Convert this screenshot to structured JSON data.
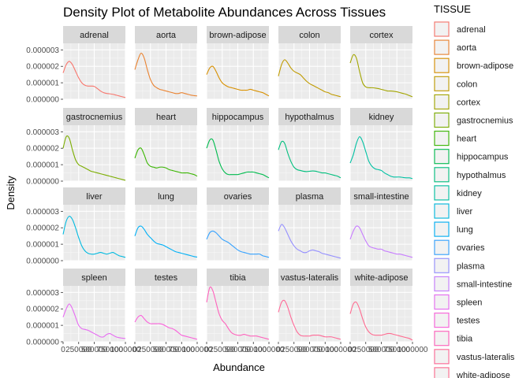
{
  "chart_data": {
    "type": "line",
    "title": "Density Plot of Metabolite Abundances Across Tissues",
    "xlabel": "Abundance",
    "ylabel": "Density",
    "facet_layout": {
      "rows": 4,
      "cols": 5
    },
    "xlim": [
      0,
      1000000
    ],
    "ylim": [
      0,
      3.4e-06
    ],
    "x_ticks": [
      0,
      250000,
      500000,
      750000,
      1000000
    ],
    "x_tick_labels": [
      "0",
      "250000",
      "500000",
      "750000",
      "1000000"
    ],
    "y_ticks": [
      0,
      1e-06,
      2e-06,
      3e-06
    ],
    "y_tick_labels": [
      "0.000000",
      "0.000001",
      "0.000002",
      "0.000003"
    ],
    "grid": true,
    "legend": {
      "title": "TISSUE",
      "position": "right"
    },
    "x": [
      0,
      50000,
      100000,
      150000,
      200000,
      250000,
      300000,
      350000,
      400000,
      450000,
      500000,
      550000,
      600000,
      650000,
      700000,
      750000,
      800000,
      850000,
      900000,
      950000,
      1000000
    ],
    "series": [
      {
        "name": "adrenal",
        "color": "#F8766D",
        "values": [
          1.6e-06,
          2.1e-06,
          2.3e-06,
          2.1e-06,
          1.7e-06,
          1.3e-06,
          1e-06,
          8.5e-07,
          8e-07,
          8e-07,
          7.8e-07,
          6.5e-07,
          5e-07,
          4e-07,
          3.5e-07,
          3.3e-07,
          3e-07,
          2.5e-07,
          2e-07,
          1.5e-07,
          1e-07
        ]
      },
      {
        "name": "aorta",
        "color": "#EA8331",
        "values": [
          1.8e-06,
          2.4e-06,
          2.8e-06,
          2.5e-06,
          1.8e-06,
          1.2e-06,
          8.5e-07,
          7e-07,
          6e-07,
          5.5e-07,
          5e-07,
          4.5e-07,
          4e-07,
          3.5e-07,
          3.5e-07,
          4e-07,
          3.5e-07,
          3e-07,
          2.5e-07,
          2.2e-07,
          2e-07
        ]
      },
      {
        "name": "brown-adipose",
        "color": "#D89000",
        "values": [
          1.5e-06,
          1.9e-06,
          2e-06,
          1.7e-06,
          1.3e-06,
          1e-06,
          8.5e-07,
          7.5e-07,
          7e-07,
          6.5e-07,
          6e-07,
          5.5e-07,
          5.5e-07,
          5.5e-07,
          6e-07,
          5.5e-07,
          5e-07,
          4.5e-07,
          4e-07,
          3e-07,
          2e-07
        ]
      },
      {
        "name": "colon",
        "color": "#C09B00",
        "values": [
          1.4e-06,
          2.1e-06,
          2.4e-06,
          2.2e-06,
          1.9e-06,
          1.7e-06,
          1.6e-06,
          1.5e-06,
          1.3e-06,
          1.1e-06,
          9.5e-07,
          8.5e-07,
          7.5e-07,
          6.5e-07,
          5.5e-07,
          4.5e-07,
          4e-07,
          3e-07,
          2.5e-07,
          2e-07,
          1.5e-07
        ]
      },
      {
        "name": "cortex",
        "color": "#A3A500",
        "values": [
          2.2e-06,
          2.7e-06,
          2.5e-06,
          1.7e-06,
          1e-06,
          7.5e-07,
          7e-07,
          7e-07,
          6.8e-07,
          6.5e-07,
          6e-07,
          5.5e-07,
          5e-07,
          5e-07,
          4.8e-07,
          4.5e-07,
          4e-07,
          3.5e-07,
          3e-07,
          2.2e-07,
          1.5e-07
        ]
      },
      {
        "name": "gastrocnemius",
        "color": "#7CAE00",
        "values": [
          2e-06,
          2.7e-06,
          2.6e-06,
          1.9e-06,
          1.3e-06,
          1e-06,
          9e-07,
          8e-07,
          7e-07,
          6e-07,
          5.5e-07,
          5e-07,
          4.5e-07,
          4e-07,
          3.5e-07,
          3e-07,
          2.5e-07,
          2e-07,
          1.5e-07,
          1e-07,
          5e-08
        ]
      },
      {
        "name": "heart",
        "color": "#39B600",
        "values": [
          1.4e-06,
          1.9e-06,
          2e-06,
          1.6e-06,
          1.1e-06,
          9e-07,
          8.5e-07,
          8e-07,
          8.5e-07,
          8.5e-07,
          8e-07,
          7e-07,
          6.5e-07,
          6e-07,
          5.5e-07,
          5e-07,
          5e-07,
          5e-07,
          4.5e-07,
          4e-07,
          3e-07
        ]
      },
      {
        "name": "hippocampus",
        "color": "#00BB4E",
        "values": [
          2e-06,
          2.5e-06,
          2.5e-06,
          1.9e-06,
          1.2e-06,
          7.5e-07,
          5e-07,
          4e-07,
          4e-07,
          4e-07,
          4e-07,
          4.5e-07,
          5e-07,
          5.5e-07,
          5.5e-07,
          5.5e-07,
          5e-07,
          4.5e-07,
          4e-07,
          3e-07,
          2e-07
        ]
      },
      {
        "name": "hypothalmus",
        "color": "#00BF7D",
        "values": [
          1.9e-06,
          2.4e-06,
          2.3e-06,
          1.7e-06,
          1.2e-06,
          8.5e-07,
          7e-07,
          6.5e-07,
          6e-07,
          5.8e-07,
          6e-07,
          6.2e-07,
          6e-07,
          5.5e-07,
          5e-07,
          5e-07,
          4.5e-07,
          4e-07,
          3.5e-07,
          3e-07,
          2e-07
        ]
      },
      {
        "name": "kidney",
        "color": "#00C1A3",
        "values": [
          1.1e-06,
          1.6e-06,
          2.3e-06,
          2.7e-06,
          2.4e-06,
          1.8e-06,
          1.2e-06,
          9e-07,
          7.5e-07,
          7e-07,
          6.5e-07,
          5e-07,
          4e-07,
          3e-07,
          2.5e-07,
          2.5e-07,
          2.5e-07,
          2.2e-07,
          2e-07,
          2e-07,
          1.5e-07
        ]
      },
      {
        "name": "liver",
        "color": "#00BAE0",
        "values": [
          1.6e-06,
          2.4e-06,
          2.7e-06,
          2.5e-06,
          2e-06,
          1.4e-06,
          9e-07,
          6e-07,
          4.5e-07,
          4e-07,
          4e-07,
          4.5e-07,
          5e-07,
          4.5e-07,
          4e-07,
          4.5e-07,
          5e-07,
          4e-07,
          3e-07,
          2.5e-07,
          2e-07
        ]
      },
      {
        "name": "lung",
        "color": "#00B0F6",
        "values": [
          1.5e-06,
          2e-06,
          2.1e-06,
          1.9e-06,
          1.6e-06,
          1.4e-06,
          1.2e-06,
          1.05e-06,
          1e-06,
          9.5e-07,
          8.5e-07,
          7.5e-07,
          6.5e-07,
          5.5e-07,
          5e-07,
          4.5e-07,
          4e-07,
          3.5e-07,
          3e-07,
          2.5e-07,
          2.2e-07
        ]
      },
      {
        "name": "ovaries",
        "color": "#35A2FF",
        "values": [
          1.3e-06,
          1.7e-06,
          1.8e-06,
          1.7e-06,
          1.5e-06,
          1.3e-06,
          1.2e-06,
          1.1e-06,
          9.5e-07,
          8e-07,
          6.5e-07,
          5.5e-07,
          5e-07,
          4.5e-07,
          4e-07,
          4e-07,
          4e-07,
          4e-07,
          3e-07,
          2.5e-07,
          2e-07
        ]
      },
      {
        "name": "plasma",
        "color": "#9590FF",
        "values": [
          1.8e-06,
          2.2e-06,
          2e-06,
          1.6e-06,
          1.2e-06,
          9e-07,
          7e-07,
          6e-07,
          5e-07,
          5e-07,
          6e-07,
          6.5e-07,
          6e-07,
          5.5e-07,
          4.5e-07,
          4e-07,
          3.5e-07,
          3e-07,
          2.5e-07,
          2e-07,
          1.5e-07
        ]
      },
      {
        "name": "small-intestine",
        "color": "#C77CFF",
        "values": [
          1.3e-06,
          1.8e-06,
          2.1e-06,
          2e-06,
          1.6e-06,
          1.2e-06,
          9e-07,
          8e-07,
          7.5e-07,
          7e-07,
          7e-07,
          6e-07,
          5.5e-07,
          5e-07,
          4.5e-07,
          4e-07,
          4e-07,
          3.5e-07,
          3e-07,
          2.5e-07,
          2e-07
        ]
      },
      {
        "name": "spleen",
        "color": "#E76BF3",
        "values": [
          1.5e-06,
          2e-06,
          2.3e-06,
          2e-06,
          1.5e-06,
          1e-06,
          8e-07,
          7.5e-07,
          7e-07,
          6e-07,
          5e-07,
          4e-07,
          3e-07,
          3e-07,
          4.5e-07,
          5e-07,
          4e-07,
          3e-07,
          2.5e-07,
          2.2e-07,
          2e-07
        ]
      },
      {
        "name": "testes",
        "color": "#FA62DB",
        "values": [
          1.2e-06,
          1.5e-06,
          1.6e-06,
          1.4e-06,
          1.2e-06,
          1.1e-06,
          1.1e-06,
          1.1e-06,
          1.1e-06,
          1.05e-06,
          9.5e-07,
          8.5e-07,
          8e-07,
          7e-07,
          5.5e-07,
          4e-07,
          3.5e-07,
          3e-07,
          2.5e-07,
          2e-07,
          1.5e-07
        ]
      },
      {
        "name": "tibia",
        "color": "#FF62BC",
        "values": [
          2.4e-06,
          3.3e-06,
          3.1e-06,
          2.4e-06,
          1.7e-06,
          1.3e-06,
          1.1e-06,
          8e-07,
          5.5e-07,
          4.5e-07,
          4e-07,
          4e-07,
          4.5e-07,
          4e-07,
          3.5e-07,
          3.5e-07,
          3.5e-07,
          3e-07,
          2.5e-07,
          2e-07,
          1.5e-07
        ]
      },
      {
        "name": "vastus-lateralis",
        "color": "#FF6A98",
        "values": [
          1.8e-06,
          2.4e-06,
          2.5e-06,
          2.1e-06,
          1.5e-06,
          1e-06,
          6e-07,
          4e-07,
          3.5e-07,
          3.5e-07,
          3.5e-07,
          4e-07,
          4e-07,
          4e-07,
          3.5e-07,
          3e-07,
          3e-07,
          3e-07,
          2.5e-07,
          2e-07,
          1.5e-07
        ]
      },
      {
        "name": "white-adipose",
        "color": "#FF6C91",
        "values": [
          1.7e-06,
          2.3e-06,
          2.4e-06,
          2e-06,
          1.4e-06,
          9e-07,
          6e-07,
          4.5e-07,
          4e-07,
          4e-07,
          4e-07,
          4.5e-07,
          5e-07,
          5e-07,
          4.5e-07,
          4e-07,
          3.5e-07,
          3e-07,
          2.5e-07,
          2e-07,
          1e-07
        ]
      }
    ]
  }
}
